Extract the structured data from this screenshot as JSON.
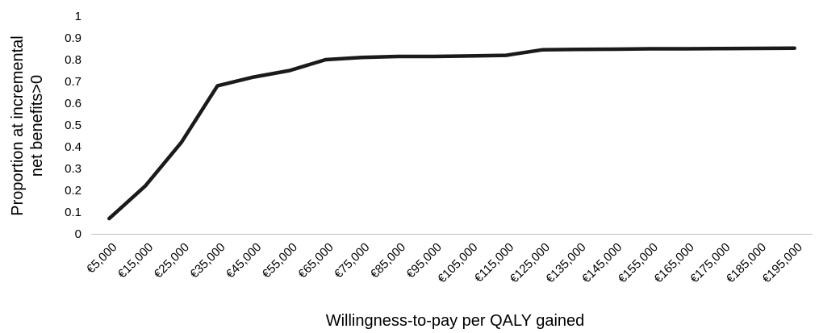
{
  "chart_data": {
    "type": "line",
    "title": "",
    "xlabel": "Willingness-to-pay per QALY gained",
    "ylabel_lines": [
      "Proportion at incremental",
      "net benefits>0"
    ],
    "ylim": [
      0,
      1
    ],
    "ytick_labels": [
      "0",
      "0.1",
      "0.2",
      "0.3",
      "0.4",
      "0.5",
      "0.6",
      "0.7",
      "0.8",
      "0.9",
      "1"
    ],
    "categories": [
      "€5,000",
      "€15,000",
      "€25,000",
      "€35,000",
      "€45,000",
      "€55,000",
      "€65,000",
      "€75,000",
      "€85,000",
      "€95,000",
      "€105,000",
      "€115,000",
      "€125,000",
      "€135,000",
      "€145,000",
      "€155,000",
      "€165,000",
      "€175,000",
      "€185,000",
      "€195,000"
    ],
    "series": [
      {
        "values": [
          0.07,
          0.22,
          0.42,
          0.68,
          0.72,
          0.75,
          0.8,
          0.81,
          0.815,
          0.815,
          0.817,
          0.82,
          0.845,
          0.847,
          0.848,
          0.85,
          0.85,
          0.851,
          0.852,
          0.853
        ],
        "color": "#1a1a1a"
      }
    ],
    "grid": false,
    "legend": "none"
  }
}
